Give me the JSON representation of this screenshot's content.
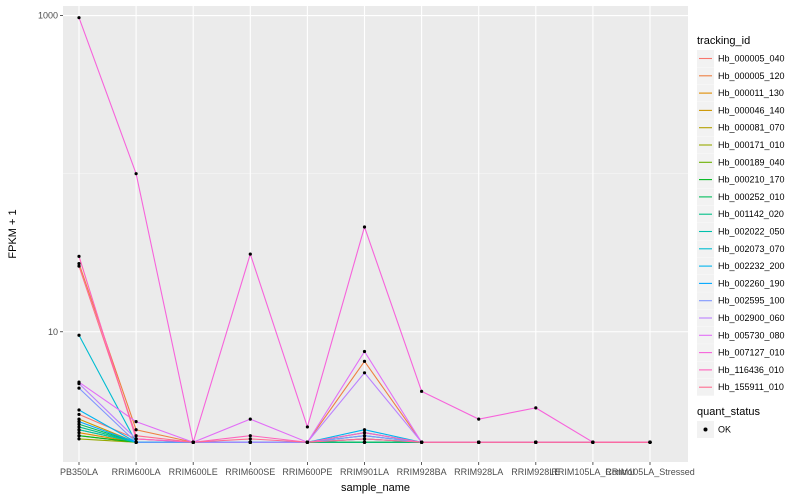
{
  "chart_data": {
    "type": "line",
    "title": "",
    "xlabel": "sample_name",
    "ylabel": "FPKM + 1",
    "y_scale": "log10",
    "ylim": [
      1.5,
      1150
    ],
    "y_ticks": [
      10,
      1000
    ],
    "y_tick_labels": [
      "10",
      "1000"
    ],
    "grid": true,
    "legend_position": "right",
    "categories": [
      "PB350LA",
      "RRIM600LA",
      "RRIM600LE",
      "RRIM600SE",
      "RRIM600PE",
      "RRIM901LA",
      "RRIM928BA",
      "RRIM928LA",
      "RRIM928LE",
      "RRIM105LA_Control",
      "RRIM105LA_Stressed"
    ],
    "legend_color_title": "tracking_id",
    "legend_shape_title": "quant_status",
    "legend_shape_item": "OK",
    "point_color": "#000000",
    "series": [
      {
        "name": "Hb_000005_040",
        "color": "#F8766D",
        "values": [
          3.0,
          2.1,
          2.0,
          2.0,
          2.0,
          2.1,
          2.0,
          2.0,
          2.0,
          2.0,
          2.0
        ]
      },
      {
        "name": "Hb_000005_120",
        "color": "#EE8043",
        "values": [
          27.0,
          2.4,
          2.0,
          2.0,
          2.0,
          6.5,
          2.0,
          2.0,
          2.0,
          2.0,
          2.0
        ]
      },
      {
        "name": "Hb_000011_130",
        "color": "#DF8C00",
        "values": [
          2.3,
          2.0,
          2.0,
          2.0,
          2.0,
          2.0,
          2.0,
          2.0,
          2.0,
          2.0,
          2.0
        ]
      },
      {
        "name": "Hb_000046_140",
        "color": "#CC9600",
        "values": [
          2.8,
          2.0,
          2.0,
          2.0,
          2.0,
          2.0,
          2.0,
          2.0,
          2.0,
          2.0,
          2.0
        ]
      },
      {
        "name": "Hb_000081_070",
        "color": "#B49F00",
        "values": [
          2.2,
          2.0,
          2.0,
          2.0,
          2.0,
          2.0,
          2.0,
          2.0,
          2.0,
          2.0,
          2.0
        ]
      },
      {
        "name": "Hb_000171_010",
        "color": "#96A900",
        "values": [
          2.1,
          2.0,
          2.0,
          2.0,
          2.0,
          2.0,
          2.0,
          2.0,
          2.0,
          2.0,
          2.0
        ]
      },
      {
        "name": "Hb_000189_040",
        "color": "#6BB100",
        "values": [
          2.4,
          2.0,
          2.0,
          2.0,
          2.0,
          2.0,
          2.0,
          2.0,
          2.0,
          2.0,
          2.0
        ]
      },
      {
        "name": "Hb_000210_170",
        "color": "#00B81F",
        "values": [
          2.2,
          2.0,
          2.0,
          2.0,
          2.0,
          2.0,
          2.0,
          2.0,
          2.0,
          2.0,
          2.0
        ]
      },
      {
        "name": "Hb_000252_010",
        "color": "#00BD5C",
        "values": [
          2.6,
          2.0,
          2.0,
          2.0,
          2.0,
          2.0,
          2.0,
          2.0,
          2.0,
          2.0,
          2.0
        ]
      },
      {
        "name": "Hb_001142_020",
        "color": "#00C087",
        "values": [
          2.5,
          2.0,
          2.0,
          2.0,
          2.0,
          2.0,
          2.0,
          2.0,
          2.0,
          2.0,
          2.0
        ]
      },
      {
        "name": "Hb_002022_050",
        "color": "#00C0AD",
        "values": [
          2.4,
          2.0,
          2.0,
          2.0,
          2.0,
          2.2,
          2.0,
          2.0,
          2.0,
          2.0,
          2.0
        ]
      },
      {
        "name": "Hb_002073_070",
        "color": "#00BCD1",
        "values": [
          9.5,
          2.0,
          2.0,
          2.0,
          2.0,
          2.3,
          2.0,
          2.0,
          2.0,
          2.0,
          2.0
        ]
      },
      {
        "name": "Hb_002232_200",
        "color": "#00B4EF",
        "values": [
          3.2,
          2.0,
          2.0,
          2.0,
          2.0,
          2.4,
          2.0,
          2.0,
          2.0,
          2.0,
          2.0
        ]
      },
      {
        "name": "Hb_002260_190",
        "color": "#00A7FF",
        "values": [
          2.7,
          2.0,
          2.0,
          2.0,
          2.0,
          2.1,
          2.0,
          2.0,
          2.0,
          2.0,
          2.0
        ]
      },
      {
        "name": "Hb_002595_100",
        "color": "#7F96FF",
        "values": [
          4.4,
          2.0,
          2.0,
          2.0,
          2.0,
          2.2,
          2.0,
          2.0,
          2.0,
          2.0,
          2.0
        ]
      },
      {
        "name": "Hb_002900_060",
        "color": "#BC81FF",
        "values": [
          4.7,
          2.1,
          2.0,
          2.0,
          2.0,
          5.5,
          2.0,
          2.0,
          2.0,
          2.0,
          2.0
        ]
      },
      {
        "name": "Hb_005730_080",
        "color": "#E26EF7",
        "values": [
          4.8,
          2.7,
          2.0,
          2.8,
          2.0,
          7.5,
          2.0,
          2.0,
          2.0,
          2.0,
          2.0
        ]
      },
      {
        "name": "Hb_007127_010",
        "color": "#F763DB",
        "values": [
          970,
          100,
          2.0,
          31,
          2.5,
          46,
          4.2,
          2.8,
          3.3,
          2.0,
          2.0
        ]
      },
      {
        "name": "Hb_116436_010",
        "color": "#FF62BC",
        "values": [
          30,
          2.1,
          2.0,
          2.2,
          2.0,
          2.3,
          2.0,
          2.0,
          2.0,
          2.0,
          2.0
        ]
      },
      {
        "name": "Hb_155911_010",
        "color": "#FF6C90",
        "values": [
          26,
          2.2,
          2.0,
          2.1,
          2.0,
          2.1,
          2.0,
          2.0,
          2.0,
          2.0,
          2.0
        ]
      }
    ]
  }
}
